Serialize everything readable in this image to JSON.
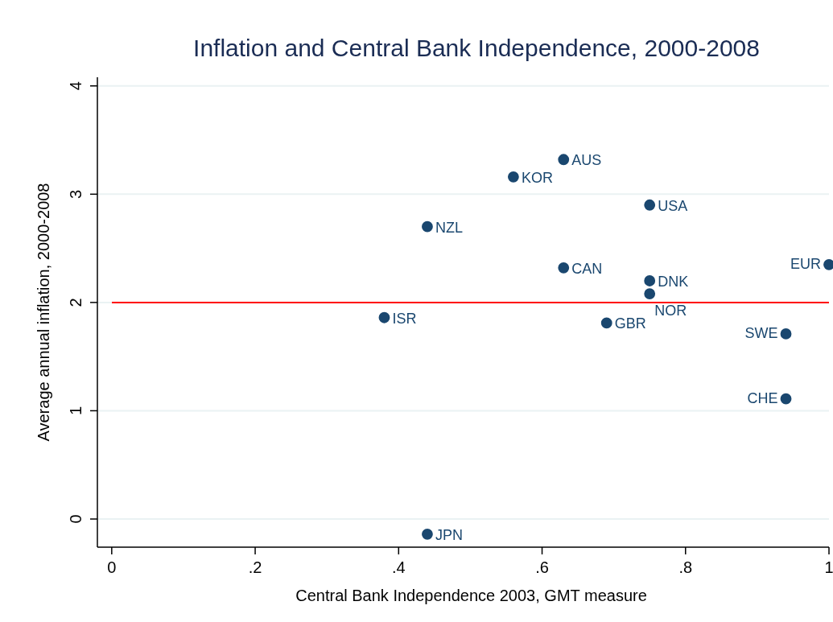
{
  "chart_data": {
    "type": "scatter",
    "title": "Inflation and Central Bank Independence, 2000-2008",
    "xlabel": "Central Bank Independence 2003, GMT measure",
    "ylabel": "Average annual inflation, 2000-2008",
    "x": [
      0.63,
      0.56,
      0.75,
      0.44,
      0.63,
      1.0,
      0.75,
      0.75,
      0.38,
      0.69,
      0.94,
      0.94,
      0.44
    ],
    "values": [
      3.32,
      3.16,
      2.9,
      2.7,
      2.32,
      2.35,
      2.2,
      2.08,
      1.86,
      1.81,
      1.71,
      1.11,
      -0.14
    ],
    "color": "#1a476f",
    "marker": "circle",
    "annotations": [
      {
        "text": "AUS",
        "x": 0.63,
        "y": 3.32
      },
      {
        "text": "KOR",
        "x": 0.56,
        "y": 3.16
      },
      {
        "text": "USA",
        "x": 0.75,
        "y": 2.9
      },
      {
        "text": "NZL",
        "x": 0.44,
        "y": 2.7
      },
      {
        "text": "CAN",
        "x": 0.63,
        "y": 2.32
      },
      {
        "text": "EUR",
        "x": 1.0,
        "y": 2.35
      },
      {
        "text": "DNK",
        "x": 0.75,
        "y": 2.2
      },
      {
        "text": "NOR",
        "x": 0.75,
        "y": 2.08
      },
      {
        "text": "ISR",
        "x": 0.38,
        "y": 1.86
      },
      {
        "text": "GBR",
        "x": 0.69,
        "y": 1.81
      },
      {
        "text": "SWE",
        "x": 0.94,
        "y": 1.71
      },
      {
        "text": "CHE",
        "x": 0.94,
        "y": 1.11
      },
      {
        "text": "JPN",
        "x": 0.44,
        "y": -0.14
      }
    ],
    "ref_lines": [
      {
        "axis": "y",
        "value": 2,
        "color": "#ff0000"
      }
    ],
    "xlim": [
      -0.02,
      1.0
    ],
    "xticks": [
      0,
      {
        "value": 0.2,
        "label": ".2"
      },
      {
        "value": 0.4,
        "label": ".4"
      },
      {
        "value": 0.6,
        "label": ".6"
      },
      {
        "value": 0.8,
        "label": ".8"
      },
      1
    ],
    "ylim": [
      -0.26,
      4.08
    ],
    "yticks": [
      0,
      1,
      2,
      3,
      4
    ],
    "grid": "y"
  }
}
